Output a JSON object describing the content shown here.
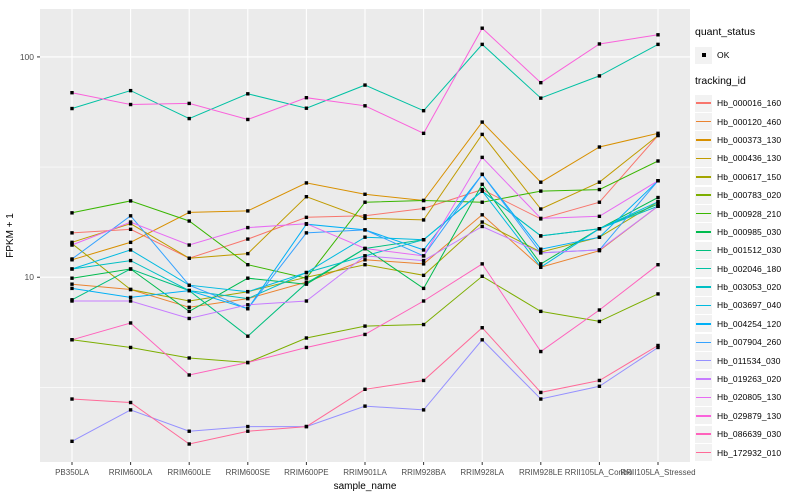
{
  "figure": {
    "bg": "#FFFFFF",
    "panel_bg": "#EBEBEB",
    "grid_color": "#FFFFFF",
    "tick_color": "#333333",
    "tick_label_color": "#4D4D4D",
    "point_color": "#000000"
  },
  "legend": {
    "quant_title": "quant_status",
    "quant_items": [
      {
        "label": "OK"
      }
    ],
    "tracking_title": "tracking_id"
  },
  "chart_data": {
    "type": "line",
    "title": "",
    "xlabel": "sample_name",
    "ylabel": "FPKM + 1",
    "y_scale": "log10",
    "ylim": [
      1.45,
      165
    ],
    "y_tick_labels": [
      {
        "value": 100,
        "label": "100"
      },
      {
        "value": 10,
        "label": "10"
      }
    ],
    "y_major_gridlines": [
      10,
      100
    ],
    "y_minor_gridlines": [
      3.162,
      31.62
    ],
    "grid": true,
    "legend_position": "right",
    "point_shape": "square",
    "x_categories": [
      "PB350LA",
      "RRIM600LA",
      "RRIM600LE",
      "RRIM600SE",
      "RRIM600PE",
      "RRIM901LA",
      "RRIM928BA",
      "RRIM928LA",
      "RRIM928LE",
      "RRII105LA_Control",
      "RRII105LA_Stressed"
    ],
    "series": [
      {
        "name": "Hb_000016_160",
        "color": "#F8766D",
        "values": [
          15.9,
          16.5,
          12.2,
          14.9,
          18.7,
          19.0,
          20.5,
          25.0,
          18.4,
          21.9,
          44.0
        ]
      },
      {
        "name": "Hb_000120_460",
        "color": "#EA8331",
        "values": [
          9.3,
          8.8,
          7.3,
          8.0,
          9.5,
          12.0,
          11.5,
          19.2,
          11.1,
          13.2,
          21.0
        ]
      },
      {
        "name": "Hb_000373_130",
        "color": "#D89000",
        "values": [
          12.0,
          14.4,
          19.7,
          20.0,
          26.8,
          23.8,
          22.3,
          50.6,
          27.0,
          39.0,
          45.0
        ]
      },
      {
        "name": "Hb_000436_130",
        "color": "#C09B00",
        "values": [
          14.4,
          17.5,
          12.2,
          12.8,
          23.2,
          18.5,
          18.2,
          44.5,
          20.4,
          27.0,
          44.0
        ]
      },
      {
        "name": "Hb_000617_150",
        "color": "#A3A500",
        "values": [
          14.2,
          8.8,
          7.8,
          8.6,
          10.0,
          11.4,
          10.2,
          17.8,
          13.0,
          15.2,
          22.0
        ]
      },
      {
        "name": "Hb_000783_020",
        "color": "#7CAE00",
        "values": [
          5.2,
          4.8,
          4.3,
          4.1,
          5.3,
          6.0,
          6.1,
          10.1,
          7.0,
          6.3,
          8.4
        ]
      },
      {
        "name": "Hb_000928_210",
        "color": "#39B600",
        "values": [
          19.6,
          22.2,
          18.0,
          11.4,
          9.9,
          21.9,
          22.3,
          21.9,
          24.6,
          25.0,
          33.7
        ]
      },
      {
        "name": "Hb_000985_030",
        "color": "#00BB4E",
        "values": [
          9.9,
          10.9,
          7.0,
          9.9,
          9.3,
          13.5,
          8.9,
          26.4,
          11.5,
          16.6,
          23.0
        ]
      },
      {
        "name": "Hb_001512_030",
        "color": "#00BF7D",
        "values": [
          7.9,
          10.9,
          8.7,
          5.4,
          9.4,
          13.5,
          14.8,
          24.6,
          15.4,
          16.6,
          21.5
        ]
      },
      {
        "name": "Hb_002046_180",
        "color": "#00C1A3",
        "values": [
          58.3,
          70.3,
          52.5,
          68.0,
          58.5,
          74.5,
          57.0,
          114.0,
          65.0,
          82.0,
          114.0
        ]
      },
      {
        "name": "Hb_003053_020",
        "color": "#00BFC4",
        "values": [
          10.9,
          11.9,
          8.7,
          8.0,
          10.5,
          12.5,
          14.8,
          24.6,
          15.4,
          16.6,
          21.0
        ]
      },
      {
        "name": "Hb_003697_040",
        "color": "#00BAE0",
        "values": [
          10.9,
          13.3,
          9.2,
          8.6,
          10.5,
          15.2,
          14.8,
          24.6,
          11.1,
          16.6,
          22.0
        ]
      },
      {
        "name": "Hb_004254_120",
        "color": "#00B0F6",
        "values": [
          8.9,
          8.1,
          8.7,
          7.2,
          17.4,
          16.4,
          13.3,
          29.3,
          13.4,
          15.2,
          27.4
        ]
      },
      {
        "name": "Hb_007904_260",
        "color": "#35A2FF",
        "values": [
          12.1,
          19.0,
          9.2,
          7.2,
          15.9,
          16.4,
          12.5,
          29.3,
          12.9,
          13.3,
          27.4
        ]
      },
      {
        "name": "Hb_011534_030",
        "color": "#9590FF",
        "values": [
          1.8,
          2.5,
          2.0,
          2.1,
          2.1,
          2.6,
          2.5,
          5.2,
          2.8,
          3.2,
          4.8
        ]
      },
      {
        "name": "Hb_019263_020",
        "color": "#C77CFF",
        "values": [
          7.8,
          7.8,
          6.5,
          7.5,
          7.8,
          12.5,
          11.9,
          17.0,
          12.9,
          13.3,
          21.0
        ]
      },
      {
        "name": "Hb_020805_130",
        "color": "#E76BF3",
        "values": [
          14.0,
          17.8,
          14.0,
          16.8,
          17.5,
          13.5,
          12.5,
          35.0,
          18.5,
          18.9,
          27.4
        ]
      },
      {
        "name": "Hb_029879_130",
        "color": "#FA62DB",
        "values": [
          68.8,
          60.8,
          61.5,
          52.0,
          65.3,
          60.0,
          45.0,
          135.0,
          76.4,
          114.5,
          126.0
        ]
      },
      {
        "name": "Hb_086639_030",
        "color": "#FF62BC",
        "values": [
          5.2,
          6.2,
          3.6,
          4.1,
          4.8,
          5.5,
          7.8,
          11.5,
          4.6,
          7.1,
          11.4
        ]
      },
      {
        "name": "Hb_172932_010",
        "color": "#FF6A98",
        "values": [
          2.8,
          2.7,
          1.75,
          2.0,
          2.1,
          3.1,
          3.4,
          5.9,
          3.0,
          3.4,
          4.9
        ]
      }
    ]
  }
}
